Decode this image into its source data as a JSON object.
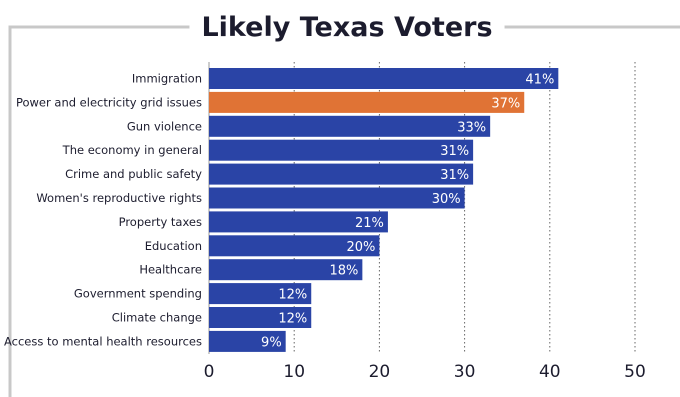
{
  "chart_data": {
    "type": "bar",
    "orientation": "horizontal",
    "title": "Likely Texas Voters",
    "categories": [
      "Immigration",
      "Power and electricity grid issues",
      "Gun violence",
      "The economy in general",
      "Crime and public safety",
      "Women's reproductive rights",
      "Property taxes",
      "Education",
      "Healthcare",
      "Government spending",
      "Climate change",
      "Access to mental health resources"
    ],
    "values": [
      41,
      37,
      33,
      31,
      31,
      30,
      21,
      20,
      18,
      12,
      12,
      9
    ],
    "value_labels": [
      "41%",
      "37%",
      "33%",
      "31%",
      "31%",
      "30%",
      "21%",
      "20%",
      "18%",
      "12%",
      "12%",
      "9%"
    ],
    "highlight_index": 1,
    "xlim": [
      0,
      50
    ],
    "xticks": [
      0,
      10,
      20,
      30,
      40,
      50
    ],
    "xtick_labels": [
      "0",
      "10",
      "20",
      "30",
      "40",
      "50"
    ],
    "grid": "vertical-dotted",
    "xlabel": "",
    "ylabel": ""
  },
  "colors": {
    "bar": "#2a44a6",
    "highlight": "#e07335",
    "frame": "#c8c8c8",
    "text": "#1c1c2e",
    "grid": "#666666"
  }
}
